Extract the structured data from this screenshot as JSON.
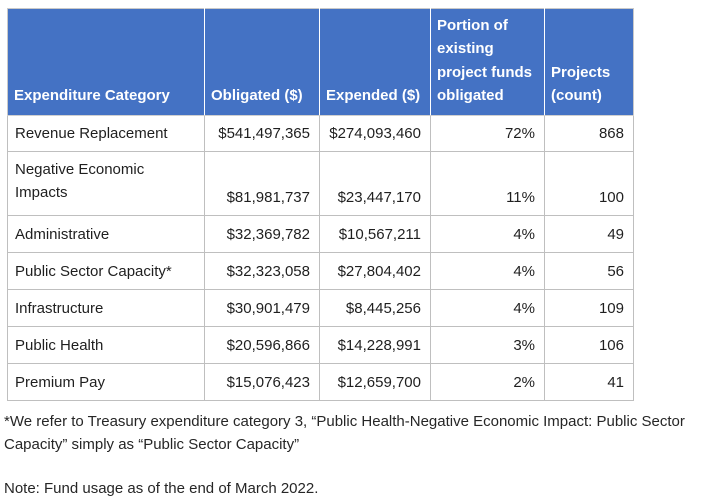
{
  "colors": {
    "header_bg": "#4472C4",
    "header_text": "#FFFFFF",
    "row_border": "#BFBFBF",
    "body_text": "#1F1F1F"
  },
  "table": {
    "columns": [
      "Expenditure Category",
      "Obligated ($)",
      "Expended ($)",
      "Portion of existing project funds obligated",
      "Projects (count)"
    ],
    "rows": [
      [
        "Revenue Replacement",
        "$541,497,365",
        "$274,093,460",
        "72%",
        "868"
      ],
      [
        "Negative Economic Impacts",
        "$81,981,737",
        "$23,447,170",
        "11%",
        "100"
      ],
      [
        "Administrative",
        "$32,369,782",
        "$10,567,211",
        "4%",
        "49"
      ],
      [
        "Public Sector Capacity*",
        "$32,323,058",
        "$27,804,402",
        "4%",
        "56"
      ],
      [
        "Infrastructure",
        "$30,901,479",
        "$8,445,256",
        "4%",
        "109"
      ],
      [
        "Public Health",
        "$20,596,866",
        "$14,228,991",
        "3%",
        "106"
      ],
      [
        "Premium Pay",
        "$15,076,423",
        "$12,659,700",
        "2%",
        "41"
      ]
    ]
  },
  "footnotes": {
    "asterisk": "*We refer to Treasury expenditure category 3, “Public Health-Negative Economic Impact: Public Sector Capacity” simply as “Public Sector Capacity”",
    "note": "Note: Fund usage as of the end of March 2022."
  }
}
